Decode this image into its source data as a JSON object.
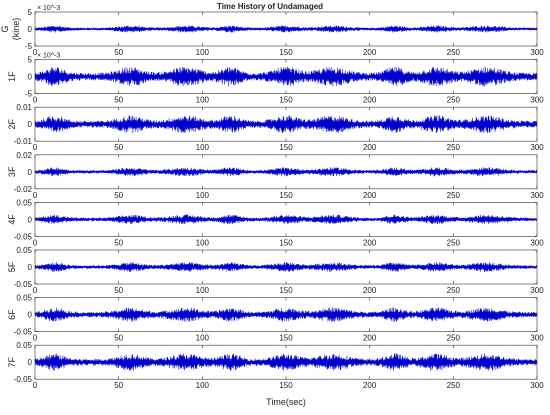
{
  "chart_data": {
    "type": "line",
    "title": "Time History of Undamaged",
    "xlabel": "Time(sec)",
    "xlim": [
      0,
      300
    ],
    "xticks": [
      0,
      50,
      100,
      150,
      200,
      250,
      300
    ],
    "series_color": "#0000cc",
    "bursts_at_sec": [
      12,
      57,
      90,
      117,
      150,
      178,
      215,
      240,
      270
    ],
    "panels": [
      {
        "ylabel": [
          "G",
          "(kine)"
        ],
        "exponent": "× 10^-3",
        "ylim": [
          -5,
          5
        ],
        "yticks": [
          -5,
          0,
          5
        ],
        "yticklabels": [
          "-5",
          "0",
          "5"
        ],
        "amplitude": 0.9
      },
      {
        "ylabel": [
          "1F"
        ],
        "exponent": "× 10^-3",
        "ylim": [
          -5,
          5
        ],
        "yticks": [
          -5,
          0,
          5
        ],
        "yticklabels": [
          "-5",
          "0",
          "5"
        ],
        "amplitude": 2.5
      },
      {
        "ylabel": [
          "2F"
        ],
        "exponent": "",
        "ylim": [
          -0.01,
          0.01
        ],
        "yticks": [
          -0.01,
          0,
          0.01
        ],
        "yticklabels": [
          "-0.01",
          "0",
          "0.01"
        ],
        "amplitude": 0.0045
      },
      {
        "ylabel": [
          "3F"
        ],
        "exponent": "",
        "ylim": [
          -0.02,
          0.02
        ],
        "yticks": [
          -0.02,
          0,
          0.02
        ],
        "yticklabels": [
          "-0.02",
          "0",
          "0.02"
        ],
        "amplitude": 0.0045
      },
      {
        "ylabel": [
          "4F"
        ],
        "exponent": "",
        "ylim": [
          -0.05,
          0.05
        ],
        "yticks": [
          -0.05,
          0,
          0.05
        ],
        "yticklabels": [
          "-0.05",
          "0",
          "0.05"
        ],
        "amplitude": 0.012
      },
      {
        "ylabel": [
          "5F"
        ],
        "exponent": "",
        "ylim": [
          -0.05,
          0.05
        ],
        "yticks": [
          -0.05,
          0,
          0.05
        ],
        "yticklabels": [
          "-0.05",
          "0",
          "0.05"
        ],
        "amplitude": 0.012
      },
      {
        "ylabel": [
          "6F"
        ],
        "exponent": "",
        "ylim": [
          -0.05,
          0.05
        ],
        "yticks": [
          -0.05,
          0,
          0.05
        ],
        "yticklabels": [
          "-0.05",
          "0",
          "0.05"
        ],
        "amplitude": 0.018
      },
      {
        "ylabel": [
          "7F"
        ],
        "exponent": "",
        "ylim": [
          -0.05,
          0.05
        ],
        "yticks": [
          -0.05,
          0,
          0.05
        ],
        "yticklabels": [
          "-0.05",
          "0",
          "0.05"
        ],
        "amplitude": 0.022
      }
    ]
  }
}
